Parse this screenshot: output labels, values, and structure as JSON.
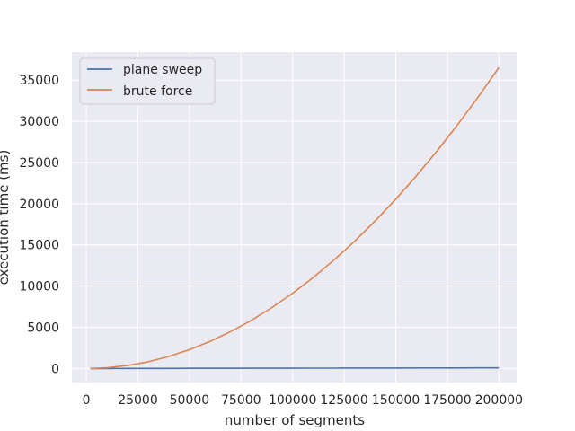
{
  "chart_data": {
    "type": "line",
    "title": "",
    "xlabel": "number of segments",
    "ylabel": "execution time (ms)",
    "xlim": [
      -7000,
      209000
    ],
    "ylim": [
      -1700,
      38400
    ],
    "x_ticks": [
      0,
      25000,
      50000,
      75000,
      100000,
      125000,
      150000,
      175000,
      200000
    ],
    "x_tick_labels": [
      "0",
      "25000",
      "50000",
      "75000",
      "100000",
      "125000",
      "150000",
      "175000",
      "200000"
    ],
    "y_ticks": [
      0,
      5000,
      10000,
      15000,
      20000,
      25000,
      30000,
      35000
    ],
    "y_tick_labels": [
      "0",
      "5000",
      "10000",
      "15000",
      "20000",
      "25000",
      "30000",
      "35000"
    ],
    "grid": true,
    "legend_position": "top-left",
    "x": [
      2000,
      10000,
      20000,
      30000,
      40000,
      50000,
      60000,
      70000,
      80000,
      90000,
      100000,
      110000,
      120000,
      130000,
      140000,
      150000,
      160000,
      170000,
      180000,
      190000,
      200000
    ],
    "series": [
      {
        "name": "plane sweep",
        "color": "#4c72b0",
        "values": [
          2,
          5,
          8,
          12,
          15,
          19,
          22,
          26,
          30,
          34,
          38,
          42,
          46,
          50,
          54,
          58,
          62,
          66,
          70,
          74,
          78
        ]
      },
      {
        "name": "brute force",
        "color": "#dd8452",
        "values": [
          4,
          91,
          365,
          822,
          1461,
          2283,
          3288,
          4475,
          5845,
          7397,
          9132,
          11050,
          13150,
          15434,
          17900,
          20548,
          23380,
          26394,
          29590,
          32970,
          36530
        ]
      }
    ]
  }
}
